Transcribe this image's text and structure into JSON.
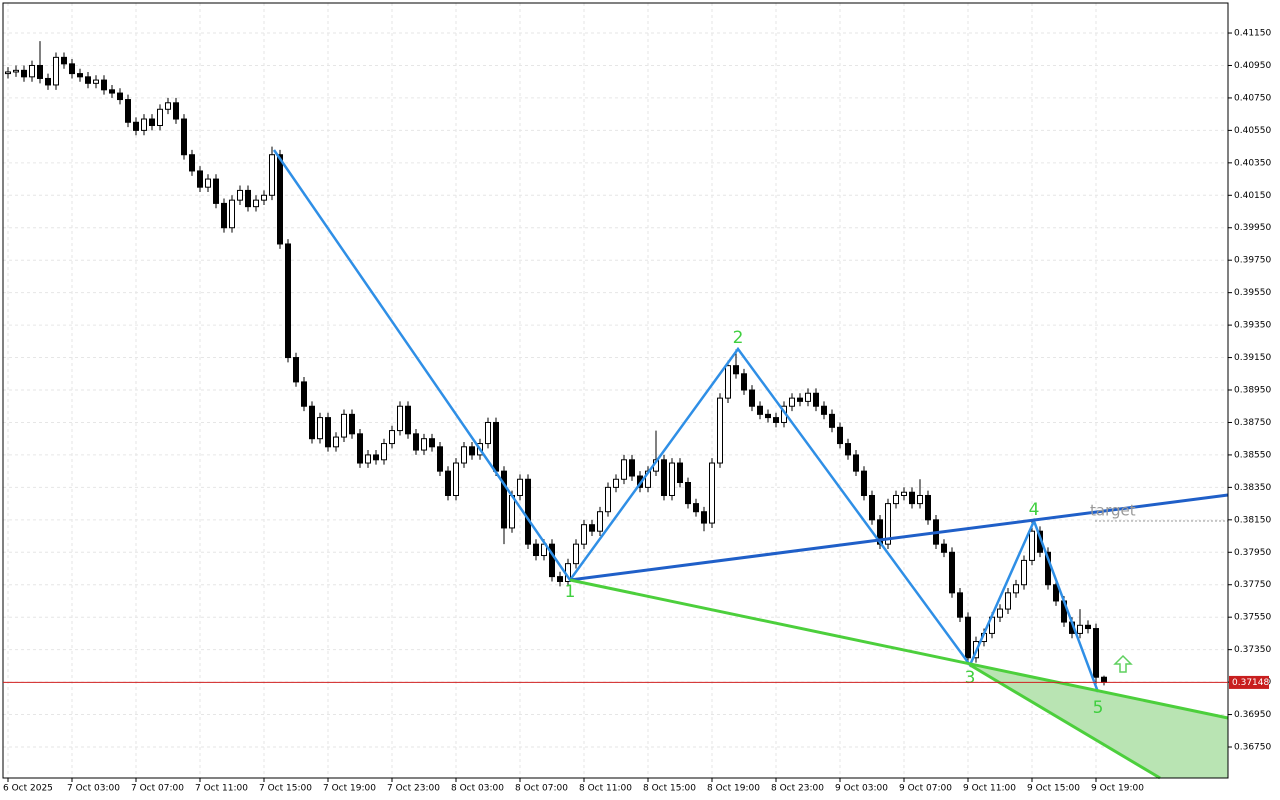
{
  "chart_data": {
    "type": "candlestick",
    "up_color": "#ffffff",
    "down_color": "#000000",
    "grid": true,
    "ylim": [
      0.36559,
      0.41335
    ],
    "yticks": [
      {
        "value": 0.4115,
        "label": "0.41150"
      },
      {
        "value": 0.4095,
        "label": "0.40950"
      },
      {
        "value": 0.4075,
        "label": "0.40750"
      },
      {
        "value": 0.4055,
        "label": "0.40550"
      },
      {
        "value": 0.4035,
        "label": "0.40350"
      },
      {
        "value": 0.4015,
        "label": "0.40150"
      },
      {
        "value": 0.3995,
        "label": "0.39950"
      },
      {
        "value": 0.3975,
        "label": "0.39750"
      },
      {
        "value": 0.3955,
        "label": "0.39550"
      },
      {
        "value": 0.3935,
        "label": "0.39350"
      },
      {
        "value": 0.3915,
        "label": "0.39150"
      },
      {
        "value": 0.3895,
        "label": "0.38950"
      },
      {
        "value": 0.3875,
        "label": "0.38750"
      },
      {
        "value": 0.3855,
        "label": "0.38550"
      },
      {
        "value": 0.3835,
        "label": "0.38350"
      },
      {
        "value": 0.3815,
        "label": "0.38150"
      },
      {
        "value": 0.3795,
        "label": "0.37950"
      },
      {
        "value": 0.3775,
        "label": "0.37750"
      },
      {
        "value": 0.3755,
        "label": "0.37550"
      },
      {
        "value": 0.3735,
        "label": "0.37350"
      },
      {
        "value": 0.3715,
        "label": "0.37150"
      },
      {
        "value": 0.3695,
        "label": "0.36950"
      },
      {
        "value": 0.3675,
        "label": "0.36750"
      }
    ],
    "last_price": {
      "value": 0.37148,
      "label": "0.37148"
    },
    "wave_labels": [
      "1",
      "2",
      "3",
      "4",
      "5"
    ],
    "target_label": "target",
    "categories": [
      "6 Oct 2025",
      null,
      null,
      null,
      null,
      null,
      null,
      null,
      "7 Oct 03:00",
      null,
      null,
      null,
      null,
      null,
      null,
      null,
      "7 Oct 07:00",
      null,
      null,
      null,
      null,
      null,
      null,
      null,
      "7 Oct 11:00",
      null,
      null,
      null,
      null,
      null,
      null,
      null,
      "7 Oct 15:00",
      null,
      null,
      null,
      null,
      null,
      null,
      null,
      "7 Oct 19:00",
      null,
      null,
      null,
      null,
      null,
      null,
      null,
      "7 Oct 23:00",
      null,
      null,
      null,
      null,
      null,
      null,
      null,
      "8 Oct 03:00",
      null,
      null,
      null,
      null,
      null,
      null,
      null,
      "8 Oct 07:00",
      null,
      null,
      null,
      null,
      null,
      null,
      null,
      "8 Oct 11:00",
      null,
      null,
      null,
      null,
      null,
      null,
      null,
      "8 Oct 15:00",
      null,
      null,
      null,
      null,
      null,
      null,
      null,
      "8 Oct 19:00",
      null,
      null,
      null,
      null,
      null,
      null,
      null,
      "8 Oct 23:00",
      null,
      null,
      null,
      null,
      null,
      null,
      null,
      "9 Oct 03:00",
      null,
      null,
      null,
      null,
      null,
      null,
      null,
      "9 Oct 07:00",
      null,
      null,
      null,
      null,
      null,
      null,
      null,
      "9 Oct 11:00",
      null,
      null,
      null,
      null,
      null,
      null,
      null,
      "9 Oct 15:00",
      null,
      null,
      null,
      null,
      null,
      null,
      null,
      "9 Oct 19:00",
      null
    ],
    "open": [
      0.409,
      0.4091,
      0.4092,
      0.4088,
      0.4095,
      0.4087,
      0.4083,
      0.41,
      0.4096,
      0.409,
      0.4088,
      0.4084,
      0.4086,
      0.408,
      0.4078,
      0.4074,
      0.406,
      0.4055,
      0.4062,
      0.4058,
      0.4068,
      0.4072,
      0.4062,
      0.404,
      0.403,
      0.402,
      0.4025,
      0.401,
      0.3995,
      0.4012,
      0.4018,
      0.4008,
      0.4012,
      0.4015,
      0.404,
      0.3985,
      0.3915,
      0.39,
      0.3885,
      0.3865,
      0.3878,
      0.386,
      0.3866,
      0.388,
      0.3868,
      0.385,
      0.3855,
      0.3852,
      0.3862,
      0.387,
      0.3885,
      0.3868,
      0.3858,
      0.3865,
      0.386,
      0.3845,
      0.383,
      0.385,
      0.386,
      0.3855,
      0.3862,
      0.3875,
      0.3845,
      0.381,
      0.383,
      0.384,
      0.38,
      0.3793,
      0.38,
      0.378,
      0.3777,
      0.3788,
      0.38,
      0.3812,
      0.3808,
      0.382,
      0.3835,
      0.384,
      0.3852,
      0.3842,
      0.3835,
      0.3845,
      0.3852,
      0.383,
      0.385,
      0.3838,
      0.3825,
      0.382,
      0.3813,
      0.385,
      0.389,
      0.391,
      0.3905,
      0.3895,
      0.3885,
      0.388,
      0.3878,
      0.3875,
      0.3885,
      0.389,
      0.3888,
      0.3893,
      0.3885,
      0.388,
      0.3872,
      0.3862,
      0.3855,
      0.3845,
      0.383,
      0.3815,
      0.38,
      0.3825,
      0.383,
      0.3832,
      0.3825,
      0.383,
      0.3815,
      0.38,
      0.3795,
      0.377,
      0.3755,
      0.373,
      0.374,
      0.3745,
      0.3755,
      0.376,
      0.377,
      0.3775,
      0.379,
      0.3808,
      0.3795,
      0.3775,
      0.3765,
      0.3752,
      0.3745,
      0.375,
      0.3748,
      0.3718
    ],
    "high": [
      0.4094,
      0.4095,
      0.4095,
      0.4098,
      0.411,
      0.409,
      0.4103,
      0.4103,
      0.4099,
      0.4093,
      0.4091,
      0.4089,
      0.4089,
      0.4083,
      0.4081,
      0.4077,
      0.4063,
      0.4065,
      0.4065,
      0.4071,
      0.4075,
      0.4075,
      0.4065,
      0.4043,
      0.4033,
      0.4028,
      0.4028,
      0.4013,
      0.4015,
      0.4021,
      0.4021,
      0.4015,
      0.4018,
      0.4045,
      0.4043,
      0.3988,
      0.3918,
      0.3903,
      0.3888,
      0.3881,
      0.3881,
      0.3869,
      0.3883,
      0.3883,
      0.3871,
      0.3858,
      0.3858,
      0.3865,
      0.3873,
      0.3888,
      0.3888,
      0.3871,
      0.3868,
      0.3868,
      0.3863,
      0.3848,
      0.3853,
      0.3863,
      0.3863,
      0.3865,
      0.3878,
      0.3878,
      0.3848,
      0.3833,
      0.3843,
      0.3843,
      0.3803,
      0.3803,
      0.3803,
      0.3783,
      0.3791,
      0.3803,
      0.3815,
      0.3815,
      0.3823,
      0.3838,
      0.3843,
      0.3855,
      0.3855,
      0.3845,
      0.3848,
      0.387,
      0.3855,
      0.3853,
      0.3853,
      0.3841,
      0.3828,
      0.3823,
      0.3853,
      0.3893,
      0.3913,
      0.392,
      0.3908,
      0.3898,
      0.3888,
      0.3883,
      0.3881,
      0.3888,
      0.3893,
      0.3893,
      0.3896,
      0.3896,
      0.3888,
      0.3883,
      0.3875,
      0.3865,
      0.3858,
      0.3848,
      0.3833,
      0.3818,
      0.3828,
      0.3833,
      0.3835,
      0.3835,
      0.384,
      0.3833,
      0.3818,
      0.3803,
      0.3798,
      0.3773,
      0.3758,
      0.3743,
      0.3748,
      0.3758,
      0.3763,
      0.3773,
      0.3778,
      0.3793,
      0.3814,
      0.3811,
      0.3798,
      0.3778,
      0.3768,
      0.3755,
      0.376,
      0.3753,
      0.3751,
      0.3719
    ],
    "low": [
      0.4087,
      0.4088,
      0.4085,
      0.4085,
      0.4084,
      0.408,
      0.408,
      0.4093,
      0.4087,
      0.4085,
      0.4081,
      0.4081,
      0.4077,
      0.4075,
      0.4071,
      0.4057,
      0.4052,
      0.4052,
      0.4055,
      0.4055,
      0.4065,
      0.4059,
      0.4037,
      0.4027,
      0.4017,
      0.4017,
      0.4007,
      0.3992,
      0.3992,
      0.4009,
      0.4005,
      0.4005,
      0.4009,
      0.4012,
      0.3982,
      0.3912,
      0.3897,
      0.3882,
      0.3862,
      0.3862,
      0.3857,
      0.3857,
      0.3863,
      0.3865,
      0.3847,
      0.3847,
      0.3849,
      0.3849,
      0.3859,
      0.3867,
      0.3865,
      0.3855,
      0.3855,
      0.3857,
      0.3842,
      0.3827,
      0.3827,
      0.3847,
      0.3852,
      0.3852,
      0.3859,
      0.3842,
      0.38,
      0.3807,
      0.3827,
      0.3797,
      0.379,
      0.379,
      0.3777,
      0.3774,
      0.3774,
      0.3785,
      0.3797,
      0.3805,
      0.3805,
      0.3817,
      0.3832,
      0.3837,
      0.3839,
      0.3832,
      0.3832,
      0.3842,
      0.3827,
      0.3827,
      0.3835,
      0.3822,
      0.3817,
      0.3808,
      0.381,
      0.3847,
      0.3887,
      0.3902,
      0.3892,
      0.3882,
      0.3877,
      0.3875,
      0.3872,
      0.3872,
      0.3882,
      0.3885,
      0.3885,
      0.3882,
      0.3877,
      0.3869,
      0.3859,
      0.3852,
      0.3842,
      0.3827,
      0.3812,
      0.3797,
      0.3797,
      0.3822,
      0.3827,
      0.3822,
      0.3822,
      0.3812,
      0.3797,
      0.3792,
      0.3767,
      0.3752,
      0.3726,
      0.3727,
      0.3737,
      0.3742,
      0.3752,
      0.3757,
      0.3767,
      0.3772,
      0.3787,
      0.3792,
      0.3772,
      0.3762,
      0.3749,
      0.3742,
      0.3742,
      0.3745,
      0.371,
      0.3713
    ],
    "close": [
      0.4091,
      0.4092,
      0.4088,
      0.4095,
      0.4087,
      0.4083,
      0.41,
      0.4096,
      0.409,
      0.4088,
      0.4084,
      0.4086,
      0.408,
      0.4078,
      0.4074,
      0.406,
      0.4055,
      0.4062,
      0.4058,
      0.4068,
      0.4072,
      0.4062,
      0.404,
      0.403,
      0.402,
      0.4025,
      0.401,
      0.3995,
      0.4012,
      0.4018,
      0.4008,
      0.4012,
      0.4015,
      0.404,
      0.3985,
      0.3915,
      0.39,
      0.3885,
      0.3865,
      0.3878,
      0.386,
      0.3866,
      0.388,
      0.3868,
      0.385,
      0.3855,
      0.3852,
      0.3862,
      0.387,
      0.3885,
      0.3868,
      0.3858,
      0.3865,
      0.386,
      0.3845,
      0.383,
      0.385,
      0.386,
      0.3855,
      0.3862,
      0.3875,
      0.3845,
      0.381,
      0.383,
      0.384,
      0.38,
      0.3793,
      0.38,
      0.378,
      0.3777,
      0.3788,
      0.38,
      0.3812,
      0.3808,
      0.382,
      0.3835,
      0.384,
      0.3852,
      0.3842,
      0.3835,
      0.3845,
      0.3852,
      0.383,
      0.385,
      0.3838,
      0.3825,
      0.382,
      0.3813,
      0.385,
      0.389,
      0.391,
      0.3905,
      0.3895,
      0.3885,
      0.388,
      0.3878,
      0.3875,
      0.3885,
      0.389,
      0.3888,
      0.3893,
      0.3885,
      0.388,
      0.3872,
      0.3862,
      0.3855,
      0.3845,
      0.383,
      0.3815,
      0.38,
      0.3825,
      0.383,
      0.3832,
      0.3825,
      0.383,
      0.3815,
      0.38,
      0.3795,
      0.377,
      0.3755,
      0.373,
      0.374,
      0.3745,
      0.3755,
      0.376,
      0.377,
      0.3775,
      0.379,
      0.3808,
      0.3795,
      0.3775,
      0.3765,
      0.3752,
      0.3745,
      0.375,
      0.3748,
      0.3718,
      0.37148
    ]
  }
}
